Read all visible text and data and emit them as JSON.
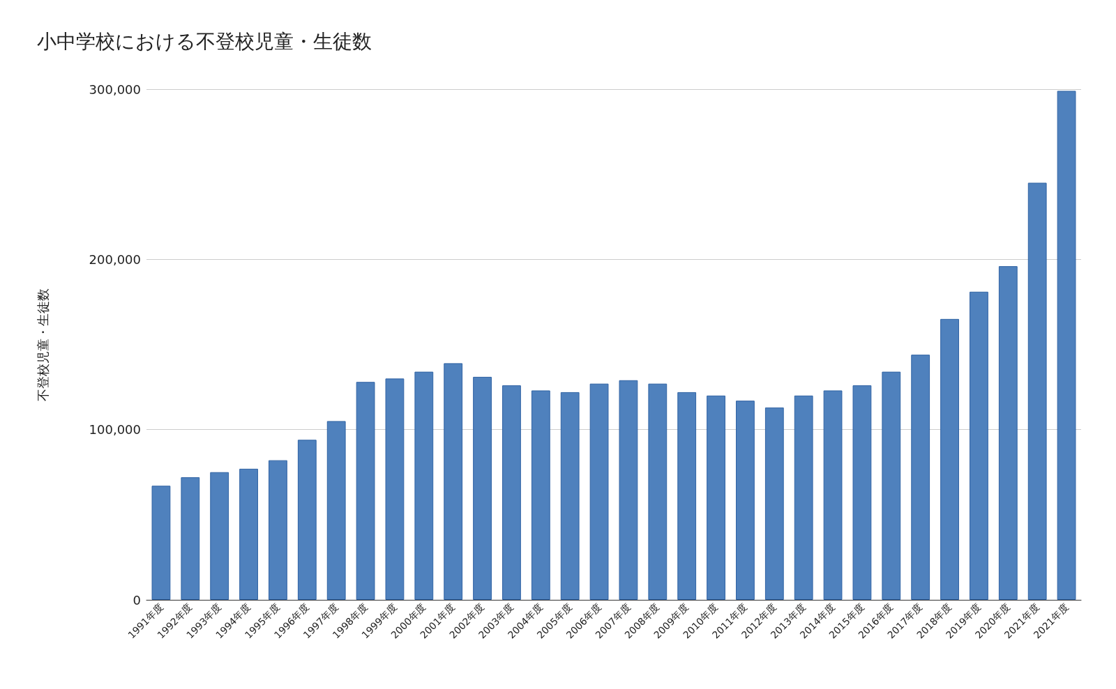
{
  "chart_data": {
    "type": "bar",
    "title": "小中学校における不登校児童・生徒数",
    "ylabel": "不登校児童・生徒数",
    "categories": [
      "1991年度",
      "1992年度",
      "1993年度",
      "1994年度",
      "1995年度",
      "1996年度",
      "1997年度",
      "1998年度",
      "1999年度",
      "2000年度",
      "2001年度",
      "2002年度",
      "2003年度",
      "2004年度",
      "2005年度",
      "2006年度",
      "2007年度",
      "2008年度",
      "2009年度",
      "2010年度",
      "2011年度",
      "2012年度",
      "2013年度",
      "2014年度",
      "2015年度",
      "2016年度",
      "2017年度",
      "2018年度",
      "2019年度",
      "2020年度",
      "2021年度",
      "2021年度"
    ],
    "values": [
      67000,
      72000,
      75000,
      77000,
      82000,
      94000,
      105000,
      128000,
      130000,
      134000,
      139000,
      131000,
      126000,
      123000,
      122000,
      127000,
      129000,
      127000,
      122000,
      120000,
      117000,
      113000,
      120000,
      123000,
      126000,
      134000,
      144000,
      165000,
      181000,
      196000,
      245000,
      299000
    ],
    "color": "#4f81bd",
    "ylim": [
      0,
      300000
    ],
    "yticks": [
      {
        "value": 0,
        "label": "0"
      },
      {
        "value": 100000,
        "label": "100,000"
      },
      {
        "value": 200000,
        "label": "200,000"
      },
      {
        "value": 300000,
        "label": "300,000"
      }
    ],
    "grid": "y"
  }
}
